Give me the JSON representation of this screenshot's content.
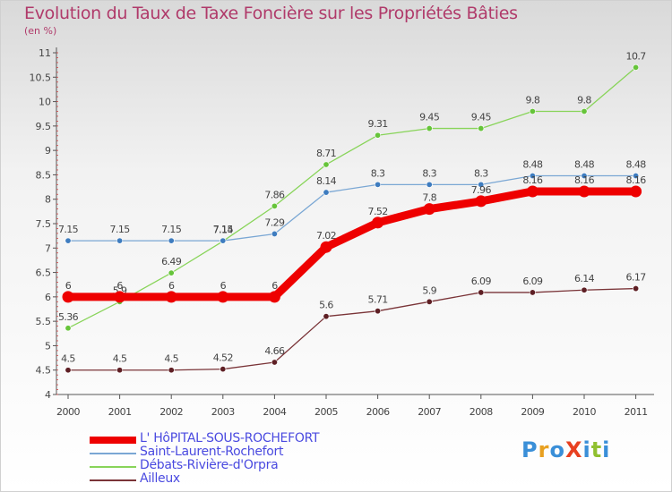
{
  "header": {
    "title": "Evolution du Taux de Taxe Foncière sur les Propriétés Bâties",
    "subtitle": "(en %)"
  },
  "logo": {
    "text": "ProXiti"
  },
  "chart_data": {
    "type": "line",
    "title": "Evolution du Taux de Taxe Foncière sur les Propriétés Bâties",
    "ylabel": "(en %)",
    "xlabel": "",
    "x": [
      "2000",
      "2001",
      "2002",
      "2003",
      "2004",
      "2005",
      "2006",
      "2007",
      "2008",
      "2009",
      "2010",
      "2011"
    ],
    "y_ticks": [
      "4",
      "4.5",
      "5",
      "5.5",
      "6",
      "6.5",
      "7",
      "7.5",
      "8",
      "8.5",
      "9",
      "9.5",
      "10",
      "10.5",
      "11"
    ],
    "ylim": [
      4,
      11
    ],
    "grid": false,
    "legend_position": "bottom",
    "series": [
      {
        "name": "Débats-Rivière-d'Orpra",
        "color": "#88d459",
        "dot": "#66c43a",
        "values": [
          5.36,
          5.9,
          6.49,
          7.14,
          7.86,
          8.71,
          9.31,
          9.45,
          9.45,
          9.8,
          9.8,
          10.7
        ],
        "labels": [
          "5.36",
          "5.9",
          "6.49",
          "7.14",
          "7.86",
          "8.71",
          "9.31",
          "9.45",
          "9.45",
          "9.8",
          "9.8",
          "10.7"
        ]
      },
      {
        "name": "Saint-Laurent-Rochefort",
        "color": "#7aa7d4",
        "dot": "#3e7cbf",
        "values": [
          7.15,
          7.15,
          7.15,
          7.15,
          7.29,
          8.14,
          8.3,
          8.3,
          8.3,
          8.48,
          8.48,
          8.48
        ],
        "labels": [
          "7.15",
          "7.15",
          "7.15",
          "7.15",
          "7.29",
          "8.14",
          "8.3",
          "8.3",
          "8.3",
          "8.48",
          "8.48",
          "8.48"
        ]
      },
      {
        "name": "Ailleux",
        "color": "#7a3438",
        "dot": "#5e1f24",
        "values": [
          4.5,
          4.5,
          4.5,
          4.52,
          4.66,
          5.6,
          5.71,
          5.9,
          6.09,
          6.09,
          6.14,
          6.17
        ],
        "labels": [
          "4.5",
          "4.5",
          "4.5",
          "4.52",
          "4.66",
          "5.6",
          "5.71",
          "5.9",
          "6.09",
          "6.09",
          "6.14",
          "6.17"
        ]
      },
      {
        "name": "L' HôPITAL-SOUS-ROCHEFORT",
        "color": "#ee0000",
        "dot": "#ee0000",
        "values": [
          6,
          6,
          6,
          6,
          6,
          7.02,
          7.52,
          7.8,
          7.96,
          8.16,
          8.16,
          8.16
        ],
        "labels": [
          "6",
          "6",
          "6",
          "6",
          "6",
          "7.02",
          "7.52",
          "7.8",
          "7.96",
          "8.16",
          "8.16",
          "8.16"
        ]
      }
    ],
    "legend": [
      {
        "name": "L' HôPITAL-SOUS-ROCHEFORT",
        "color": "#ee0000",
        "thickness": "thick"
      },
      {
        "name": "Saint-Laurent-Rochefort",
        "color": "#7aa7d4",
        "thickness": "thin"
      },
      {
        "name": "Débats-Rivière-d'Orpra",
        "color": "#88d459",
        "thickness": "thin"
      },
      {
        "name": "Ailleux",
        "color": "#7a3438",
        "thickness": "thin"
      }
    ]
  }
}
